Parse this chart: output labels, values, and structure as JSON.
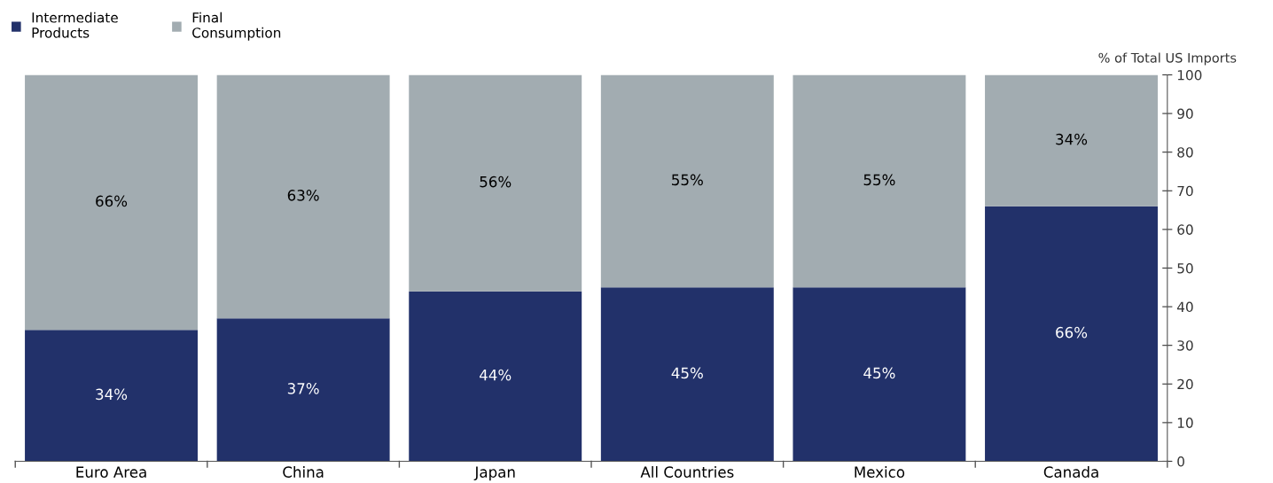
{
  "chart_data": {
    "type": "bar",
    "stacked": true,
    "ylabel": "% of Total US Imports",
    "categories": [
      "Euro Area",
      "China",
      "Japan",
      "All Countries",
      "Mexico",
      "Canada"
    ],
    "series": [
      {
        "name": "Intermediate\nProducts",
        "color": "#22316a",
        "values": [
          34,
          37,
          44,
          45,
          45,
          66
        ],
        "value_labels": [
          "34%",
          "37%",
          "44%",
          "45%",
          "45%",
          "66%"
        ]
      },
      {
        "name": "Final\nConsumption",
        "color": "#a2acb1",
        "values": [
          66,
          63,
          56,
          55,
          55,
          34
        ],
        "value_labels": [
          "66%",
          "63%",
          "56%",
          "55%",
          "55%",
          "34%"
        ]
      }
    ],
    "ylim": [
      0,
      100
    ],
    "yticks": [
      0,
      10,
      20,
      30,
      40,
      50,
      60,
      70,
      80,
      90,
      100
    ],
    "grid": false,
    "legend": "top left"
  }
}
